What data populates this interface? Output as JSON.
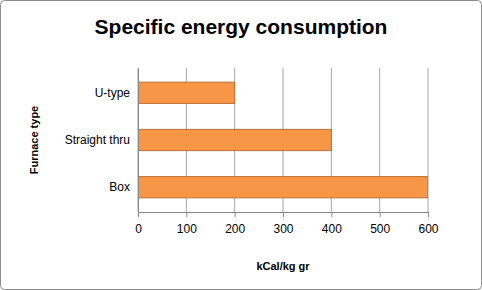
{
  "chart_data": {
    "type": "bar",
    "orientation": "horizontal",
    "title": "Specific energy consumption",
    "x_label": "kCal/kg gr",
    "y_label": "Furnace type",
    "categories": [
      "U-type",
      "Straight thru",
      "Box"
    ],
    "values": [
      200,
      400,
      600
    ],
    "color": "#f79646",
    "xlim": [
      0,
      600
    ],
    "xticks": [
      0,
      100,
      200,
      300,
      400,
      500,
      600
    ],
    "grid": true
  }
}
